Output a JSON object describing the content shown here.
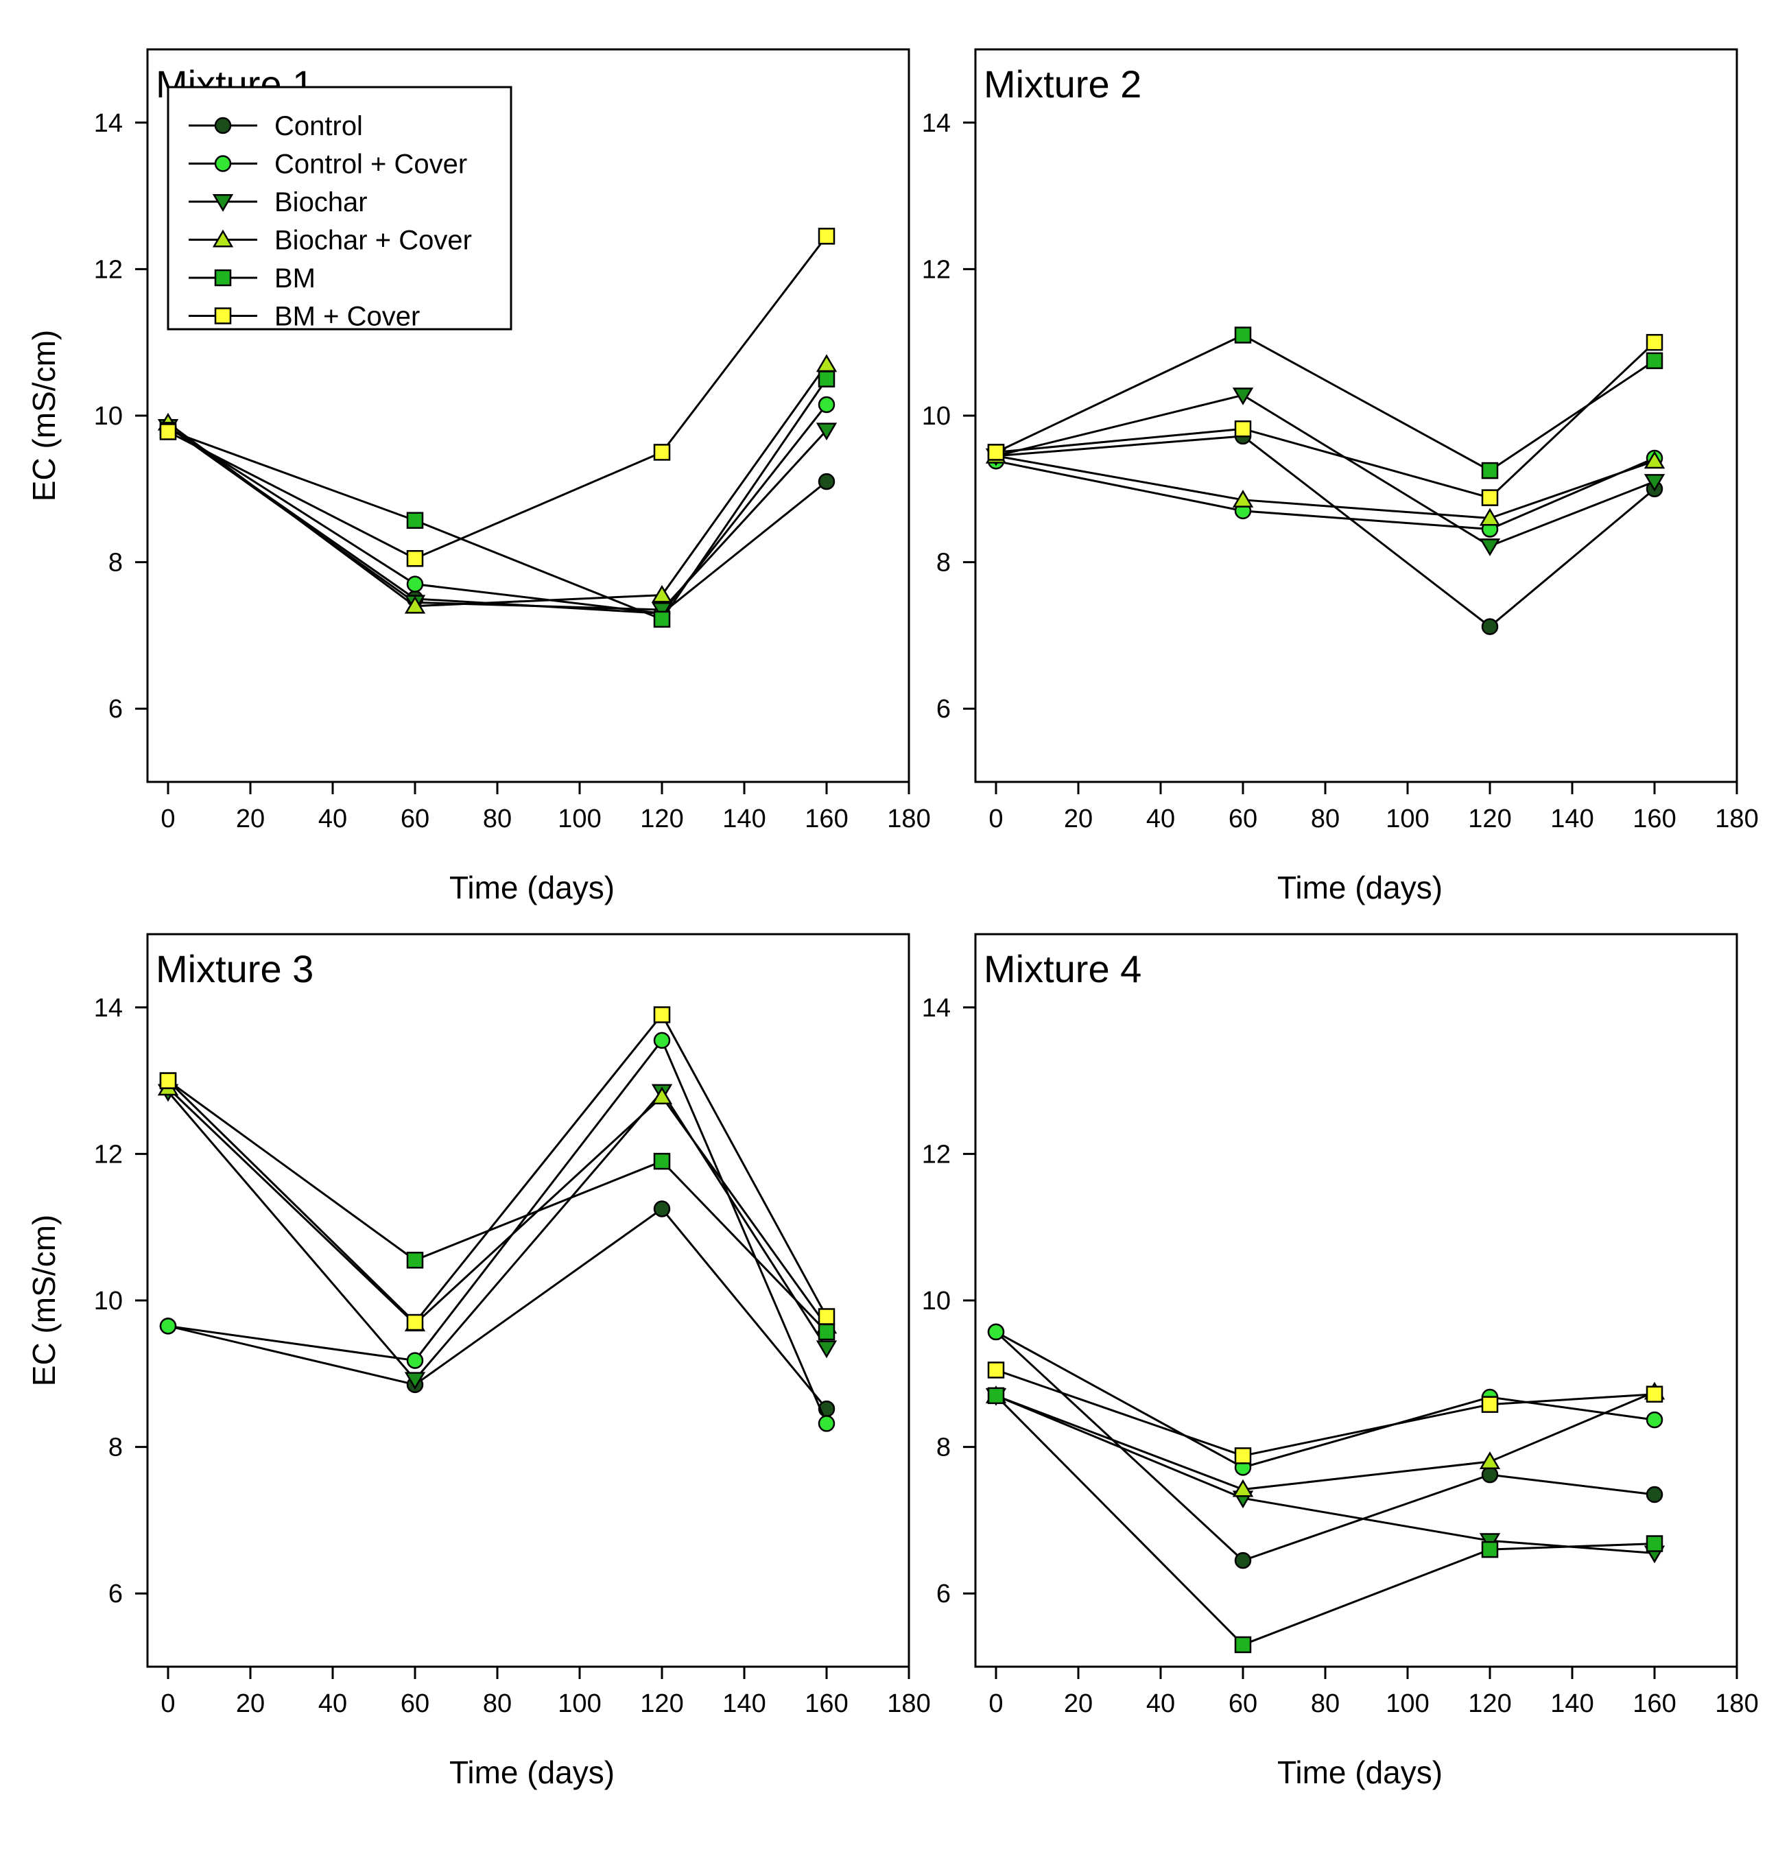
{
  "legend": [
    {
      "name": "Control",
      "marker": "circle",
      "fill": "#1a4d1a"
    },
    {
      "name": "Control + Cover",
      "marker": "circle",
      "fill": "#33e633"
    },
    {
      "name": "Biochar",
      "marker": "triangle-down",
      "fill": "#1a8c1a"
    },
    {
      "name": "Biochar + Cover",
      "marker": "triangle-up",
      "fill": "#b3e61a"
    },
    {
      "name": "BM",
      "marker": "square",
      "fill": "#1fb31f"
    },
    {
      "name": "BM + Cover",
      "marker": "square",
      "fill": "#ffff33"
    }
  ],
  "chart_data": [
    {
      "type": "line",
      "title": "Mixture 1",
      "xlabel": "Time (days)",
      "ylabel": "EC (mS/cm)",
      "xlim": [
        -5,
        180
      ],
      "ylim": [
        5,
        15
      ],
      "xticks": [
        0,
        20,
        40,
        60,
        80,
        100,
        120,
        140,
        160,
        180
      ],
      "yticks": [
        6,
        8,
        10,
        12,
        14
      ],
      "x": [
        0,
        60,
        120,
        160
      ],
      "show_legend": true,
      "series": [
        {
          "name": "Control",
          "values": [
            9.85,
            7.5,
            7.3,
            9.1
          ]
        },
        {
          "name": "Control + Cover",
          "values": [
            9.85,
            7.7,
            7.3,
            10.15
          ]
        },
        {
          "name": "Biochar",
          "values": [
            9.85,
            7.45,
            7.35,
            9.8
          ]
        },
        {
          "name": "Biochar + Cover",
          "values": [
            9.9,
            7.4,
            7.55,
            10.7
          ]
        },
        {
          "name": "BM",
          "values": [
            9.8,
            8.57,
            7.22,
            10.5
          ]
        },
        {
          "name": "BM + Cover",
          "values": [
            9.78,
            8.05,
            9.5,
            12.45
          ]
        }
      ]
    },
    {
      "type": "line",
      "title": "Mixture 2",
      "xlabel": "Time (days)",
      "ylabel": "",
      "xlim": [
        -5,
        180
      ],
      "ylim": [
        5,
        15
      ],
      "xticks": [
        0,
        20,
        40,
        60,
        80,
        100,
        120,
        140,
        160,
        180
      ],
      "yticks": [
        6,
        8,
        10,
        12,
        14
      ],
      "x": [
        0,
        60,
        120,
        160
      ],
      "show_legend": false,
      "series": [
        {
          "name": "Control",
          "values": [
            9.45,
            9.72,
            7.12,
            9.0
          ]
        },
        {
          "name": "Control + Cover",
          "values": [
            9.38,
            8.7,
            8.45,
            9.42
          ]
        },
        {
          "name": "Biochar",
          "values": [
            9.45,
            10.28,
            8.22,
            9.1
          ]
        },
        {
          "name": "Biochar + Cover",
          "values": [
            9.45,
            8.85,
            8.6,
            9.38
          ]
        },
        {
          "name": "BM",
          "values": [
            9.5,
            11.1,
            9.25,
            10.75
          ]
        },
        {
          "name": "BM + Cover",
          "values": [
            9.5,
            9.82,
            8.88,
            11.0
          ]
        }
      ]
    },
    {
      "type": "line",
      "title": "Mixture 3",
      "xlabel": "Time (days)",
      "ylabel": "EC (mS/cm)",
      "xlim": [
        -5,
        180
      ],
      "ylim": [
        5,
        15
      ],
      "xticks": [
        0,
        20,
        40,
        60,
        80,
        100,
        120,
        140,
        160,
        180
      ],
      "yticks": [
        6,
        8,
        10,
        12,
        14
      ],
      "x": [
        0,
        60,
        120,
        160
      ],
      "show_legend": false,
      "series": [
        {
          "name": "Control",
          "values": [
            9.65,
            8.85,
            11.25,
            8.52
          ]
        },
        {
          "name": "Control + Cover",
          "values": [
            9.65,
            9.18,
            13.55,
            8.32
          ]
        },
        {
          "name": "Biochar",
          "values": [
            12.85,
            8.92,
            12.85,
            9.35
          ]
        },
        {
          "name": "Biochar + Cover",
          "values": [
            12.9,
            9.68,
            12.78,
            9.65
          ]
        },
        {
          "name": "BM",
          "values": [
            13.0,
            10.55,
            11.9,
            9.57
          ]
        },
        {
          "name": "BM + Cover",
          "values": [
            13.0,
            9.7,
            13.9,
            9.78
          ]
        }
      ]
    },
    {
      "type": "line",
      "title": "Mixture 4",
      "xlabel": "Time (days)",
      "ylabel": "",
      "xlim": [
        -5,
        180
      ],
      "ylim": [
        5,
        15
      ],
      "xticks": [
        0,
        20,
        40,
        60,
        80,
        100,
        120,
        140,
        160,
        180
      ],
      "yticks": [
        6,
        8,
        10,
        12,
        14
      ],
      "x": [
        0,
        60,
        120,
        160
      ],
      "show_legend": false,
      "series": [
        {
          "name": "Control",
          "values": [
            9.57,
            6.45,
            7.62,
            7.35
          ]
        },
        {
          "name": "Control + Cover",
          "values": [
            9.57,
            7.72,
            8.68,
            8.37
          ]
        },
        {
          "name": "Biochar",
          "values": [
            8.7,
            7.3,
            6.72,
            6.55
          ]
        },
        {
          "name": "Biochar + Cover",
          "values": [
            8.7,
            7.42,
            7.8,
            8.75
          ]
        },
        {
          "name": "BM",
          "values": [
            8.7,
            5.3,
            6.6,
            6.68
          ]
        },
        {
          "name": "BM + Cover",
          "values": [
            9.05,
            7.88,
            8.58,
            8.72
          ]
        }
      ]
    }
  ]
}
